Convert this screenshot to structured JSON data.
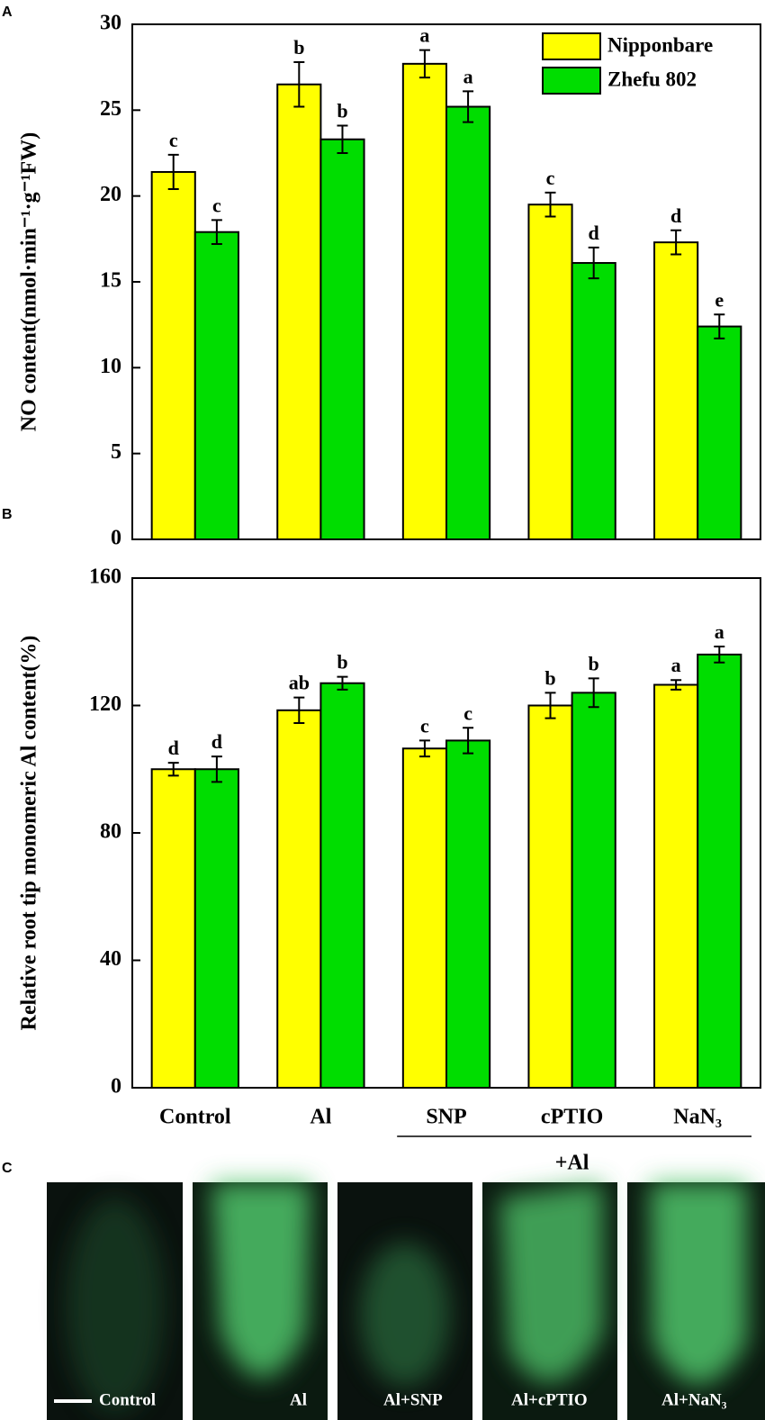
{
  "chart_data": [
    {
      "type": "bar",
      "panel": "A",
      "ylabel": "NO content(nmol·min⁻¹·g⁻¹FW)",
      "ylim": [
        0,
        30
      ],
      "yticks": [
        0,
        5,
        10,
        15,
        20,
        25,
        30
      ],
      "legend": "upper right",
      "series": [
        {
          "name": "Nipponbare",
          "color": "#ffff00",
          "values": [
            21.4,
            26.5,
            27.7,
            19.5,
            17.3
          ],
          "errors": [
            1.0,
            1.3,
            0.8,
            0.7,
            0.7
          ],
          "letters": [
            "c",
            "b",
            "a",
            "c",
            "d"
          ]
        },
        {
          "name": "Zhefu 802",
          "color": "#00dd00",
          "values": [
            17.9,
            23.3,
            25.2,
            16.1,
            12.4
          ],
          "errors": [
            0.7,
            0.8,
            0.9,
            0.9,
            0.7
          ],
          "letters": [
            "c",
            "b",
            "a",
            "d",
            "e"
          ]
        }
      ]
    },
    {
      "type": "bar",
      "panel": "B",
      "ylabel": "Relative root tip monomeric Al content(%)",
      "ylim": [
        0,
        160
      ],
      "yticks": [
        0,
        40,
        80,
        120,
        160
      ],
      "categories": [
        "Control",
        "Al",
        "SNP",
        "cPTIO",
        "NaN₃"
      ],
      "annotation": "+Al",
      "series": [
        {
          "color": "#ffff00",
          "values": [
            100,
            118.5,
            106.5,
            120,
            126.5
          ],
          "errors": [
            2,
            4,
            2.5,
            4,
            1.5
          ],
          "letters": [
            "d",
            "ab",
            "c",
            "b",
            "a"
          ]
        },
        {
          "color": "#00dd00",
          "values": [
            100,
            127,
            109,
            124,
            136
          ],
          "errors": [
            4,
            2,
            4,
            4.5,
            2.5
          ],
          "letters": [
            "d",
            "b",
            "c",
            "b",
            "a"
          ]
        }
      ]
    }
  ],
  "micrographs": {
    "panel": "C",
    "labels": [
      "Control",
      "Al",
      "Al+SNP",
      "Al+cPTIO",
      "Al+NaN₃"
    ]
  }
}
